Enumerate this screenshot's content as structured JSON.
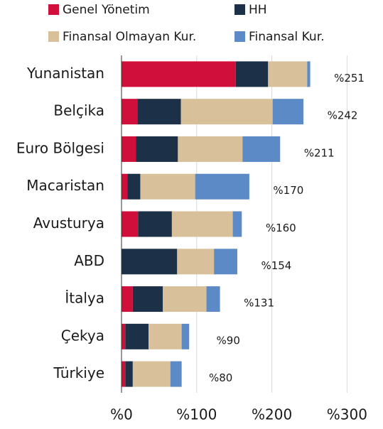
{
  "chart_data": {
    "type": "stacked_bar_horizontal",
    "categories": [
      "Yunanistan",
      "Belçika",
      "Euro Bölgesi",
      "Macaristan",
      "Avusturya",
      "ABD",
      "İtalya",
      "Çekya",
      "Türkiye"
    ],
    "series": [
      {
        "name": "Genel Yönetim",
        "color": "#d0103a",
        "values": [
          152,
          21,
          19,
          8,
          22,
          0,
          15,
          5,
          5
        ]
      },
      {
        "name": "HH",
        "color": "#1c3048",
        "values": [
          43,
          58,
          56,
          17,
          45,
          74,
          40,
          31,
          10
        ]
      },
      {
        "name": "Finansal Olmayan Kur.",
        "color": "#d8c09a",
        "values": [
          52,
          122,
          86,
          73,
          81,
          49,
          58,
          44,
          50
        ]
      },
      {
        "name": "Finansal Kur.",
        "color": "#5b8ac6",
        "values": [
          4,
          41,
          50,
          72,
          12,
          31,
          18,
          10,
          15
        ]
      }
    ],
    "value_labels": [
      "%251",
      "%242",
      "%211",
      "%170",
      "%160",
      "%154",
      "%131",
      "%90",
      "%80"
    ],
    "xlim": [
      0,
      345
    ],
    "xticks": [
      {
        "value": 0,
        "label": "%0"
      },
      {
        "value": 100,
        "label": "%100"
      },
      {
        "value": 200,
        "label": "%200"
      },
      {
        "value": 300,
        "label": "%300"
      }
    ],
    "grid": true
  }
}
